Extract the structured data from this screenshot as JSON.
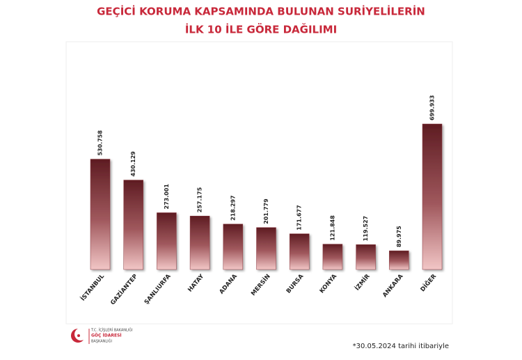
{
  "chart_data": {
    "type": "bar",
    "title": [
      "GEÇİCİ KORUMA KAPSAMINDA BULUNAN SURİYELİLERİN",
      "İLK 10 İLE GÖRE DAĞILIMI"
    ],
    "categories": [
      "İSTANBUL",
      "GAZİANTEP",
      "ŞANLIURFA",
      "HATAY",
      "ADANA",
      "MERSİN",
      "BURSA",
      "KONYA",
      "İZMİR",
      "ANKARA",
      "DİĞER"
    ],
    "values": [
      530758,
      430129,
      273001,
      257175,
      218297,
      201779,
      171677,
      121848,
      119527,
      89975,
      699933
    ],
    "value_labels": [
      "530.758",
      "430.129",
      "273.001",
      "257.175",
      "218.297",
      "201.779",
      "171.677",
      "121.848",
      "119.527",
      "89.975",
      "699.933"
    ],
    "color": "#8b3a40",
    "ylim": [
      0,
      700000
    ],
    "footnote": "*30.05.2024 tarihi itibariyle"
  },
  "logo": {
    "ministry": "T.C. İÇİŞLERİ BAKANLIĞI",
    "name": "GÖÇ İDARESİ",
    "unit": "BAŞKANLIĞI"
  }
}
